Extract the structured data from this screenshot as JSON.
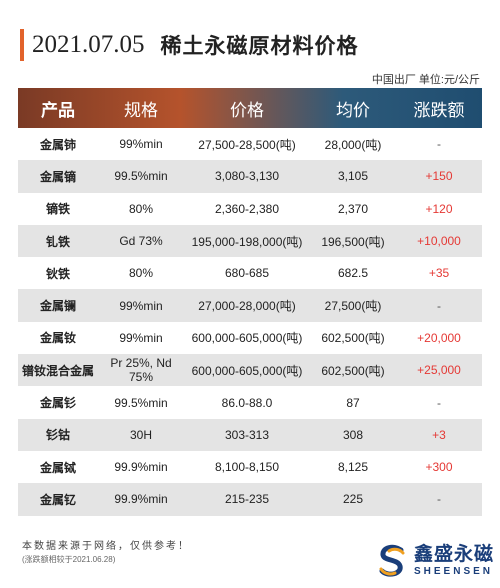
{
  "title": {
    "date": "2021.07.05",
    "text": "稀土永磁原材料价格"
  },
  "unit": "中国出厂 单位:元/公斤",
  "headers": [
    "产品",
    "规格",
    "价格",
    "均价",
    "涨跌额"
  ],
  "rows": [
    [
      "金属铈",
      "99%min",
      "27,500-28,500(吨)",
      "28,000(吨)",
      "-"
    ],
    [
      "金属镝",
      "99.5%min",
      "3,080-3,130",
      "3,105",
      "+150"
    ],
    [
      "镝铁",
      "80%",
      "2,360-2,380",
      "2,370",
      "+120"
    ],
    [
      "钆铁",
      "Gd 73%",
      "195,000-198,000(吨)",
      "196,500(吨)",
      "+10,000"
    ],
    [
      "钬铁",
      "80%",
      "680-685",
      "682.5",
      "+35"
    ],
    [
      "金属镧",
      "99%min",
      "27,000-28,000(吨)",
      "27,500(吨)",
      "-"
    ],
    [
      "金属钕",
      "99%min",
      "600,000-605,000(吨)",
      "602,500(吨)",
      "+20,000"
    ],
    [
      "镨钕混合金属",
      "Pr 25%, Nd 75%",
      "600,000-605,000(吨)",
      "602,500(吨)",
      "+25,000"
    ],
    [
      "金属钐",
      "99.5%min",
      "86.0-88.0",
      "87",
      "-"
    ],
    [
      "钐钴",
      "30H",
      "303-313",
      "308",
      "+3"
    ],
    [
      "金属铽",
      "99.9%min",
      "8,100-8,150",
      "8,125",
      "+300"
    ],
    [
      "金属钇",
      "99.9%min",
      "215-235",
      "225",
      "-"
    ]
  ],
  "notes": {
    "source": "本数据来源于网络，仅供参考！",
    "compare": "(涨跌额相较于2021.06.28)"
  },
  "logo": {
    "cn": "鑫盛永磁",
    "en": "SHEENSEN",
    "icon": "sheensen-s-logo-icon"
  },
  "colors": {
    "accent": "#e2632b",
    "up": "#e53935",
    "brand": "#1a3e7a"
  }
}
